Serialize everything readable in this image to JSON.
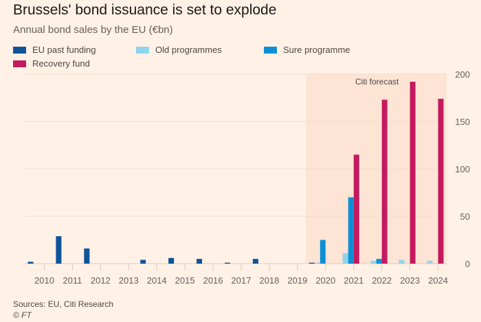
{
  "chart_data": {
    "type": "bar",
    "title": "Brussels' bond issuance is set to explode",
    "subtitle": "Annual bond sales by the EU (€bn)",
    "xlabel": "",
    "ylabel": "",
    "ylim": [
      0,
      200
    ],
    "yticks": [
      0,
      50,
      100,
      150,
      200
    ],
    "y_axis_side": "right",
    "grid": true,
    "legend_position": "top-left",
    "categories": [
      "2010",
      "2011",
      "2012",
      "2013",
      "2014",
      "2015",
      "2016",
      "2017",
      "2018",
      "2019",
      "2020",
      "2021",
      "2022",
      "2023",
      "2024"
    ],
    "series": [
      {
        "name": "EU past funding",
        "color": "#0f5499",
        "values": [
          2,
          29,
          16,
          0,
          4,
          6,
          5,
          1,
          5,
          0,
          1,
          0,
          0,
          0,
          0
        ]
      },
      {
        "name": "Old programmes",
        "color": "#8ed4ee",
        "values": [
          0,
          0,
          0,
          0,
          0,
          0,
          0,
          0,
          0,
          0,
          1,
          11,
          3,
          4,
          3
        ]
      },
      {
        "name": "Sure programme",
        "color": "#0d8fd6",
        "values": [
          0,
          0,
          0,
          0,
          0,
          0,
          0,
          0,
          0,
          0,
          25,
          70,
          5,
          0,
          0
        ]
      },
      {
        "name": "Recovery fund",
        "color": "#c41a5f",
        "values": [
          0,
          0,
          0,
          0,
          0,
          0,
          0,
          0,
          0,
          0,
          0,
          115,
          173,
          192,
          174
        ]
      }
    ],
    "annotations": [
      {
        "text": "Citi forecast",
        "shaded_range": [
          "2020",
          "2024"
        ]
      }
    ]
  },
  "footer": {
    "source": "Sources: EU, Citi Research",
    "copyright": "© FT"
  }
}
